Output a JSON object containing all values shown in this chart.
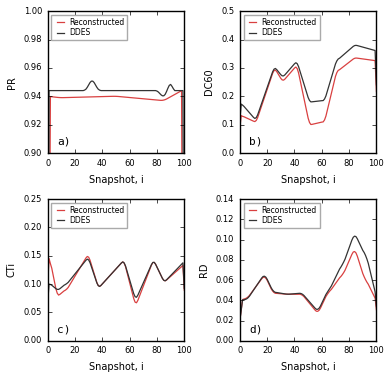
{
  "panels": [
    {
      "label": "a)",
      "ylabel": "PR",
      "ylim": [
        0.9,
        1.0
      ],
      "yticks": [
        0.9,
        0.92,
        0.94,
        0.96,
        0.98,
        1.0
      ]
    },
    {
      "label": "b)",
      "ylabel": "DC60",
      "ylim": [
        0.0,
        0.5
      ],
      "yticks": [
        0.0,
        0.1,
        0.2,
        0.3,
        0.4,
        0.5
      ]
    },
    {
      "label": "c)",
      "ylabel": "CTi",
      "ylim": [
        0.0,
        0.25
      ],
      "yticks": [
        0.0,
        0.05,
        0.1,
        0.15,
        0.2,
        0.25
      ]
    },
    {
      "label": "d)",
      "ylabel": "RD",
      "ylim": [
        0.0,
        0.14
      ],
      "yticks": [
        0.0,
        0.02,
        0.04,
        0.06,
        0.08,
        0.1,
        0.12,
        0.14
      ]
    }
  ],
  "xlabel": "Snapshot, i",
  "xlim": [
    0,
    100
  ],
  "xticks": [
    0,
    20,
    40,
    60,
    80,
    100
  ],
  "legend_labels": [
    "Reconstructed",
    "DDES"
  ],
  "color_reconstructed": "#d94040",
  "color_ddes": "#333333",
  "background_color": "#ffffff",
  "fig_facecolor": "#e8e8e8",
  "fontsize": 7,
  "n_points": 101
}
